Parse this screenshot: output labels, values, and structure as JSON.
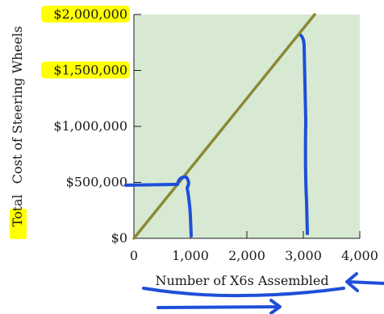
{
  "chart_data": {
    "type": "line",
    "title": "",
    "xlabel": "Number of X6s Assembled",
    "ylabel_prefix": "Total",
    "ylabel_rest": "Cost of Steering Wheels",
    "xlim": [
      0,
      4000
    ],
    "ylim": [
      0,
      2000000
    ],
    "x_ticks": [
      0,
      1000,
      2000,
      3000,
      4000
    ],
    "x_tick_labels": [
      "0",
      "1,000",
      "2,000",
      "3,000",
      "4,000"
    ],
    "y_ticks": [
      0,
      500000,
      1000000,
      1500000,
      2000000
    ],
    "y_tick_labels": [
      "$0",
      "$500,000",
      "$1,000,000",
      "$1,500,000",
      "$2,000,000"
    ],
    "y_tick_highlighted": [
      false,
      false,
      false,
      true,
      true
    ],
    "series": [
      {
        "x": [
          0,
          3200
        ],
        "y": [
          0,
          2000000
        ],
        "color": "#8a8a35"
      }
    ],
    "colors": {
      "plot_background": "#d7e9d2",
      "line": "#8a8a35",
      "highlight": "#ffff00",
      "annotation_ink": "#1f4fd8"
    }
  }
}
